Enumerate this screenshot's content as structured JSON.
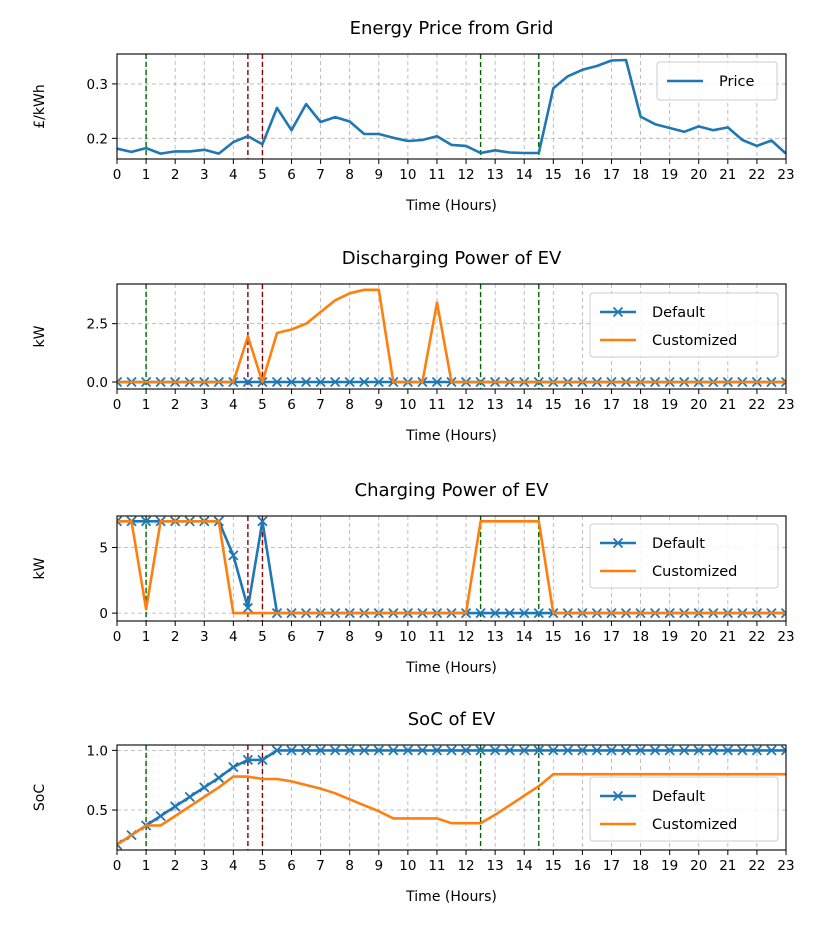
{
  "colors": {
    "price": "#1f77b4",
    "default": "#1f77b4",
    "customized": "#ff7f0e",
    "green_line": "#006400",
    "red_line": "#8b0000",
    "grid": "#b0b0b0"
  },
  "x_ticks": [
    "0",
    "1",
    "2",
    "3",
    "4",
    "5",
    "6",
    "7",
    "8",
    "9",
    "10",
    "11",
    "12",
    "13",
    "14",
    "15",
    "16",
    "17",
    "18",
    "19",
    "20",
    "21",
    "22",
    "23"
  ],
  "markers": {
    "green": [
      1,
      12.5,
      14.5
    ],
    "red": [
      4.5,
      5
    ]
  },
  "chart_data": [
    {
      "type": "line",
      "title": "Energy Price from Grid",
      "xlabel": "Time (Hours)",
      "ylabel": "£/kWh",
      "xlim": [
        0,
        23
      ],
      "ylim": [
        0.162,
        0.355
      ],
      "yticks": [
        0.2,
        0.3
      ],
      "ytick_labels": [
        "0.2",
        "0.3"
      ],
      "legend": "upper right",
      "series": [
        {
          "name": "Price",
          "color": "#1f77b4",
          "marker": "none",
          "x": [
            0,
            0.5,
            1,
            1.5,
            2,
            2.5,
            3,
            3.5,
            4,
            4.5,
            5,
            5.5,
            6,
            6.5,
            7,
            7.5,
            8,
            8.5,
            9,
            9.5,
            10,
            10.5,
            11,
            11.5,
            12,
            12.5,
            13,
            13.5,
            14,
            14.5,
            15,
            15.5,
            16,
            16.5,
            17,
            17.5,
            18,
            18.5,
            19,
            19.5,
            20,
            20.5,
            21,
            21.5,
            22,
            22.5,
            23
          ],
          "values": [
            0.181,
            0.175,
            0.182,
            0.172,
            0.176,
            0.176,
            0.179,
            0.172,
            0.193,
            0.204,
            0.189,
            0.256,
            0.215,
            0.263,
            0.23,
            0.239,
            0.231,
            0.208,
            0.208,
            0.201,
            0.195,
            0.197,
            0.204,
            0.188,
            0.186,
            0.173,
            0.178,
            0.174,
            0.173,
            0.173,
            0.292,
            0.314,
            0.326,
            0.333,
            0.343,
            0.344,
            0.24,
            0.226,
            0.219,
            0.212,
            0.222,
            0.215,
            0.22,
            0.197,
            0.186,
            0.196,
            0.172
          ]
        }
      ]
    },
    {
      "type": "line",
      "title": "Discharging Power of EV",
      "xlabel": "Time (Hours)",
      "ylabel": "kW",
      "xlim": [
        0,
        23
      ],
      "ylim": [
        -0.3,
        4.2
      ],
      "yticks": [
        0,
        2.5
      ],
      "ytick_labels": [
        "0.0",
        "2.5"
      ],
      "legend": "right",
      "series": [
        {
          "name": "Default",
          "color": "#1f77b4",
          "marker": "x",
          "x": [
            0,
            0.5,
            1,
            1.5,
            2,
            2.5,
            3,
            3.5,
            4,
            4.5,
            5,
            5.5,
            6,
            6.5,
            7,
            7.5,
            8,
            8.5,
            9,
            9.5,
            10,
            10.5,
            11,
            11.5,
            12,
            12.5,
            13,
            13.5,
            14,
            14.5,
            15,
            15.5,
            16,
            16.5,
            17,
            17.5,
            18,
            18.5,
            19,
            19.5,
            20,
            20.5,
            21,
            21.5,
            22,
            22.5,
            23
          ],
          "values": [
            0,
            0,
            0,
            0,
            0,
            0,
            0,
            0,
            0,
            0,
            0,
            0,
            0,
            0,
            0,
            0,
            0,
            0,
            0,
            0,
            0,
            0,
            0,
            0,
            0,
            0,
            0,
            0,
            0,
            0,
            0,
            0,
            0,
            0,
            0,
            0,
            0,
            0,
            0,
            0,
            0,
            0,
            0,
            0,
            0,
            0,
            0
          ]
        },
        {
          "name": "Customized",
          "color": "#ff7f0e",
          "marker": "none",
          "x": [
            0,
            0.5,
            1,
            1.5,
            2,
            2.5,
            3,
            3.5,
            4,
            4.5,
            5,
            5.5,
            6,
            6.5,
            7,
            7.5,
            8,
            8.5,
            9,
            9.5,
            10,
            10.5,
            11,
            11.5,
            12,
            12.5,
            13,
            13.5,
            14,
            14.5,
            15,
            15.5,
            16,
            16.5,
            17,
            17.5,
            18,
            18.5,
            19,
            19.5,
            20,
            20.5,
            21,
            21.5,
            22,
            22.5,
            23
          ],
          "values": [
            0,
            0,
            0,
            0,
            0,
            0,
            0,
            0,
            0,
            1.95,
            0,
            2.1,
            2.25,
            2.5,
            3.0,
            3.5,
            3.8,
            3.95,
            3.95,
            0,
            0,
            0,
            3.4,
            0,
            0,
            0,
            0,
            0,
            0,
            0,
            0,
            0,
            0,
            0,
            0,
            0,
            0,
            0,
            0,
            0,
            0,
            0,
            0,
            0,
            0,
            0,
            0
          ]
        }
      ]
    },
    {
      "type": "line",
      "title": "Charging Power of EV",
      "xlabel": "Time (Hours)",
      "ylabel": "kW",
      "xlim": [
        0,
        23
      ],
      "ylim": [
        -0.6,
        7.4
      ],
      "yticks": [
        0,
        5
      ],
      "ytick_labels": [
        "0",
        "5"
      ],
      "legend": "right",
      "series": [
        {
          "name": "Default",
          "color": "#1f77b4",
          "marker": "x",
          "x": [
            0,
            0.5,
            1,
            1.5,
            2,
            2.5,
            3,
            3.5,
            4,
            4.5,
            5,
            5.5,
            6,
            6.5,
            7,
            7.5,
            8,
            8.5,
            9,
            9.5,
            10,
            10.5,
            11,
            11.5,
            12,
            12.5,
            13,
            13.5,
            14,
            14.5,
            15,
            15.5,
            16,
            16.5,
            17,
            17.5,
            18,
            18.5,
            19,
            19.5,
            20,
            20.5,
            21,
            21.5,
            22,
            22.5,
            23
          ],
          "values": [
            7,
            7,
            7,
            7,
            7,
            7,
            7,
            7,
            4.4,
            0.4,
            7,
            0,
            0,
            0,
            0,
            0,
            0,
            0,
            0,
            0,
            0,
            0,
            0,
            0,
            0,
            0,
            0,
            0,
            0,
            0,
            0,
            0,
            0,
            0,
            0,
            0,
            0,
            0,
            0,
            0,
            0,
            0,
            0,
            0,
            0,
            0,
            0
          ]
        },
        {
          "name": "Customized",
          "color": "#ff7f0e",
          "marker": "none",
          "x": [
            0,
            0.5,
            1,
            1.5,
            2,
            2.5,
            3,
            3.5,
            4,
            4.5,
            5,
            5.5,
            6,
            6.5,
            7,
            7.5,
            8,
            8.5,
            9,
            9.5,
            10,
            10.5,
            11,
            11.5,
            12,
            12.5,
            13,
            13.5,
            14,
            14.5,
            15,
            15.5,
            16,
            16.5,
            17,
            17.5,
            18,
            18.5,
            19,
            19.5,
            20,
            20.5,
            21,
            21.5,
            22,
            22.5,
            23
          ],
          "values": [
            7,
            7,
            0.3,
            7,
            7,
            7,
            7,
            7,
            0,
            0,
            0,
            0,
            0,
            0,
            0,
            0,
            0,
            0,
            0,
            0,
            0,
            0,
            0,
            0,
            0,
            7,
            7,
            7,
            7,
            7,
            0,
            0,
            0,
            0,
            0,
            0,
            0,
            0,
            0,
            0,
            0,
            0,
            0,
            0,
            0,
            0,
            0
          ]
        }
      ]
    },
    {
      "type": "line",
      "title": "SoC of EV",
      "xlabel": "Time (Hours)",
      "ylabel": "SoC",
      "xlim": [
        0,
        23
      ],
      "ylim": [
        0.165,
        1.045
      ],
      "yticks": [
        0.5,
        1.0
      ],
      "ytick_labels": [
        "0.5",
        "1.0"
      ],
      "legend": "right",
      "series": [
        {
          "name": "Default",
          "color": "#1f77b4",
          "marker": "x",
          "x": [
            0,
            0.5,
            1,
            1.5,
            2,
            2.5,
            3,
            3.5,
            4,
            4.5,
            5,
            5.5,
            6,
            6.5,
            7,
            7.5,
            8,
            8.5,
            9,
            9.5,
            10,
            10.5,
            11,
            11.5,
            12,
            12.5,
            13,
            13.5,
            14,
            14.5,
            15,
            15.5,
            16,
            16.5,
            17,
            17.5,
            18,
            18.5,
            19,
            19.5,
            20,
            20.5,
            21,
            21.5,
            22,
            22.5,
            23
          ],
          "values": [
            0.21,
            0.29,
            0.37,
            0.45,
            0.53,
            0.61,
            0.69,
            0.77,
            0.86,
            0.92,
            0.92,
            1.0,
            1.0,
            1.0,
            1.0,
            1.0,
            1.0,
            1.0,
            1.0,
            1.0,
            1.0,
            1.0,
            1.0,
            1.0,
            1.0,
            1.0,
            1.0,
            1.0,
            1.0,
            1.0,
            1.0,
            1.0,
            1.0,
            1.0,
            1.0,
            1.0,
            1.0,
            1.0,
            1.0,
            1.0,
            1.0,
            1.0,
            1.0,
            1.0,
            1.0,
            1.0,
            1.0
          ]
        },
        {
          "name": "Customized",
          "color": "#ff7f0e",
          "marker": "none",
          "x": [
            0,
            0.5,
            1,
            1.5,
            2,
            2.5,
            3,
            3.5,
            4,
            4.5,
            5,
            5.5,
            6,
            6.5,
            7,
            7.5,
            8,
            8.5,
            9,
            9.5,
            10,
            10.5,
            11,
            11.5,
            12,
            12.5,
            13,
            13.5,
            14,
            14.5,
            15,
            15.5,
            16,
            16.5,
            17,
            17.5,
            18,
            18.5,
            19,
            19.5,
            20,
            20.5,
            21,
            21.5,
            22,
            22.5,
            23
          ],
          "values": [
            0.21,
            0.29,
            0.37,
            0.37,
            0.45,
            0.53,
            0.61,
            0.69,
            0.78,
            0.78,
            0.76,
            0.76,
            0.74,
            0.71,
            0.68,
            0.64,
            0.59,
            0.54,
            0.49,
            0.43,
            0.43,
            0.43,
            0.43,
            0.39,
            0.39,
            0.39,
            0.46,
            0.54,
            0.62,
            0.7,
            0.8,
            0.8,
            0.8,
            0.8,
            0.8,
            0.8,
            0.8,
            0.8,
            0.8,
            0.8,
            0.8,
            0.8,
            0.8,
            0.8,
            0.8,
            0.8,
            0.8
          ]
        }
      ]
    }
  ]
}
